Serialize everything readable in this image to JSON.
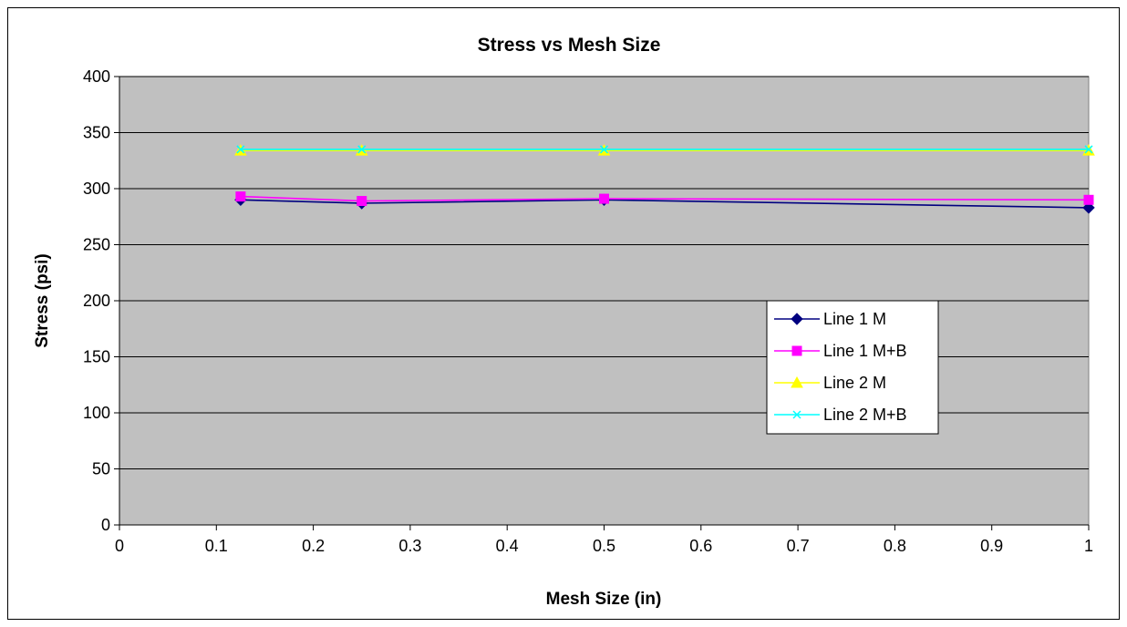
{
  "chart_data": {
    "type": "line",
    "title": "Stress vs Mesh Size",
    "xlabel": "Mesh Size (in)",
    "ylabel": "Stress (psi)",
    "xlim": [
      0,
      1
    ],
    "ylim": [
      0,
      400
    ],
    "x_ticks": [
      0,
      0.1,
      0.2,
      0.3,
      0.4,
      0.5,
      0.6,
      0.7,
      0.8,
      0.9,
      1
    ],
    "x_tick_labels": [
      "0",
      "0.1",
      "0.2",
      "0.3",
      "0.4",
      "0.5",
      "0.6",
      "0.7",
      "0.8",
      "0.9",
      "1"
    ],
    "y_ticks": [
      0,
      50,
      100,
      150,
      200,
      250,
      300,
      350,
      400
    ],
    "y_tick_labels": [
      "0",
      "50",
      "100",
      "150",
      "200",
      "250",
      "300",
      "350",
      "400"
    ],
    "grid": "horizontal",
    "plot_background": "#c0c0c0",
    "legend_position": "right",
    "series": [
      {
        "name": "Line 1 M",
        "color": "#000080",
        "marker": "diamond",
        "x": [
          0.125,
          0.25,
          0.5,
          1
        ],
        "y": [
          290,
          287,
          290,
          283
        ]
      },
      {
        "name": "Line 1 M+B",
        "color": "#ff00ff",
        "marker": "square",
        "x": [
          0.125,
          0.25,
          0.5,
          1
        ],
        "y": [
          293,
          289,
          291,
          290
        ]
      },
      {
        "name": "Line 2 M",
        "color": "#ffff00",
        "marker": "triangle",
        "x": [
          0.125,
          0.25,
          0.5,
          1
        ],
        "y": [
          334,
          334,
          334,
          334
        ]
      },
      {
        "name": "Line 2 M+B",
        "color": "#00ffff",
        "marker": "x",
        "x": [
          0.125,
          0.25,
          0.5,
          1
        ],
        "y": [
          335,
          335,
          335,
          335
        ]
      }
    ]
  }
}
